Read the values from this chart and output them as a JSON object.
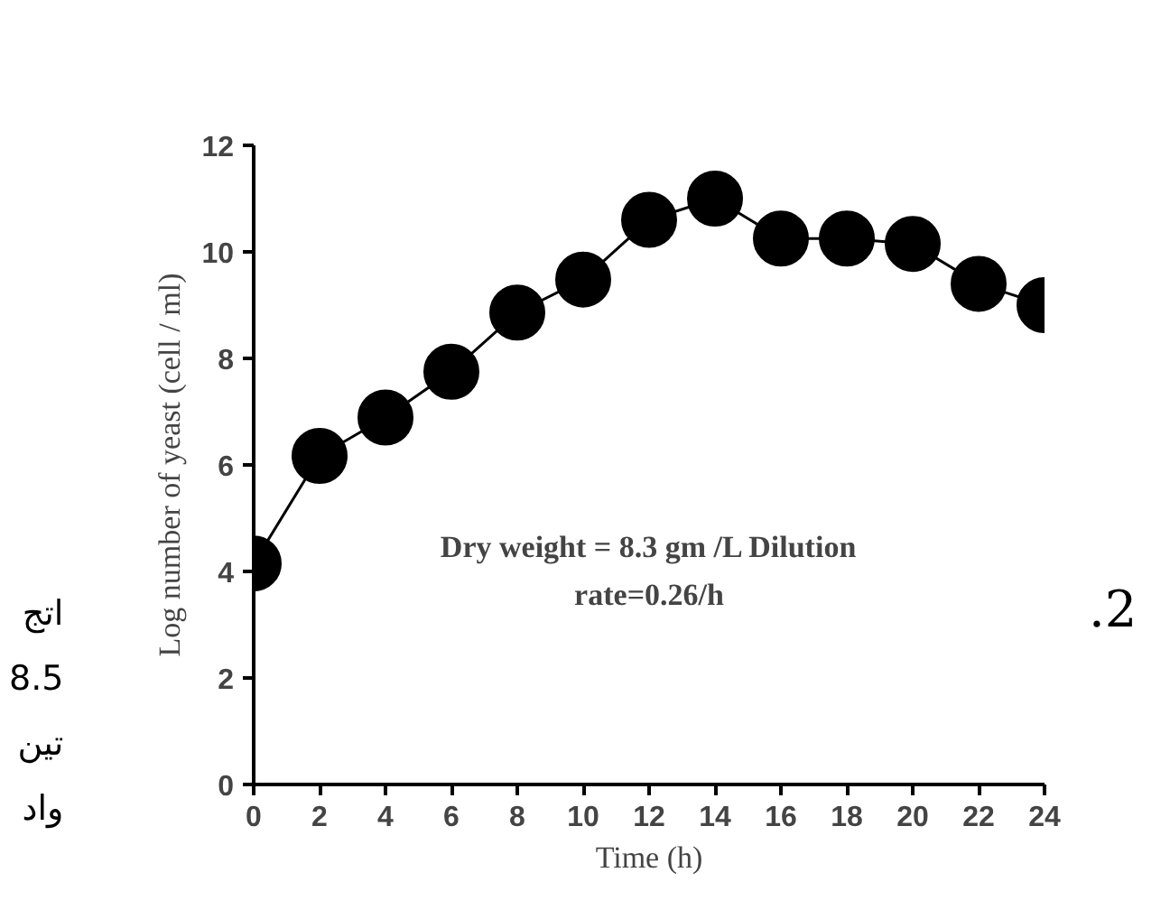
{
  "chart_data": {
    "type": "line",
    "xlabel": "Time (h)",
    "ylabel": "Log number of yeast (cell / ml)",
    "x": [
      0,
      2,
      4,
      6,
      8,
      10,
      12,
      14,
      16,
      18,
      20,
      22,
      24
    ],
    "series": [
      {
        "color": "#000000",
        "values": [
          4.15,
          6.17,
          6.89,
          7.75,
          8.86,
          9.48,
          10.6,
          11.0,
          10.25,
          10.25,
          10.15,
          9.4,
          9.0
        ]
      }
    ],
    "xlim": [
      0,
      24
    ],
    "xticks": [
      0,
      2,
      4,
      6,
      8,
      10,
      12,
      14,
      16,
      18,
      20,
      22,
      24
    ],
    "ylim": [
      0,
      12
    ],
    "yticks": [
      0,
      2,
      4,
      6,
      8,
      10,
      12
    ],
    "marker": "circle",
    "grid": false,
    "annotations": [
      "Dry weight = 8.3 gm /L Dilution\nrate=0.26/h",
      ".2",
      "اتج",
      "8.5",
      "تين",
      "واد"
    ]
  }
}
